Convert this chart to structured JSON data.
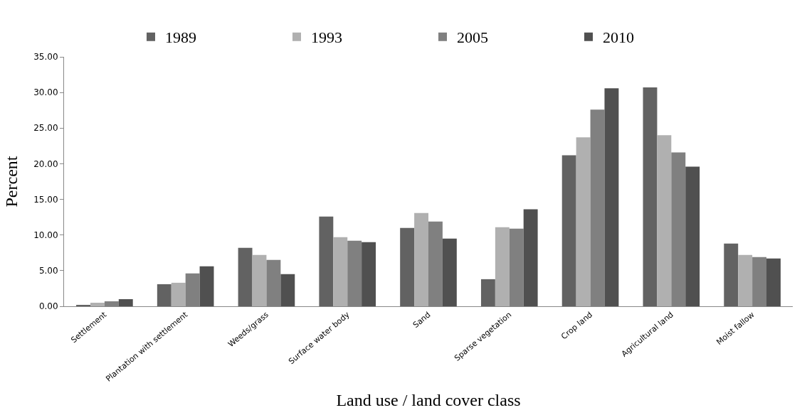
{
  "chart_data": {
    "type": "bar",
    "xlabel": "Land use / land cover class",
    "ylabel": "Percent",
    "categories": [
      "Settlement",
      "Plantation with settlement",
      "Weeds/grass",
      "Surface water body",
      "Sand",
      "Sparse vegetation",
      "Crop land",
      "Agricultural land",
      "Moist fallow"
    ],
    "series": [
      {
        "name": "1989",
        "color": "#626262",
        "values": [
          0.2,
          3.1,
          8.2,
          12.6,
          11.0,
          3.8,
          21.2,
          30.7,
          8.8
        ]
      },
      {
        "name": "1993",
        "color": "#b0b0b0",
        "values": [
          0.5,
          3.3,
          7.2,
          9.7,
          13.1,
          11.1,
          23.7,
          24.0,
          7.2
        ]
      },
      {
        "name": "2005",
        "color": "#808080",
        "values": [
          0.7,
          4.6,
          6.5,
          9.2,
          11.9,
          10.9,
          27.6,
          21.6,
          6.9
        ]
      },
      {
        "name": "2010",
        "color": "#505050",
        "values": [
          1.0,
          5.6,
          4.5,
          9.0,
          9.5,
          13.6,
          30.6,
          19.6,
          6.7
        ]
      }
    ],
    "ylim": [
      0,
      35
    ],
    "yticks": [
      {
        "value": 0,
        "label": "0.00"
      },
      {
        "value": 5,
        "label": "5.00"
      },
      {
        "value": 10,
        "label": "10.00"
      },
      {
        "value": 15,
        "label": "15.00"
      },
      {
        "value": 20,
        "label": "20.00"
      },
      {
        "value": 25,
        "label": "25.00"
      },
      {
        "value": 30,
        "label": "30.00"
      },
      {
        "value": 35,
        "label": "35.00"
      }
    ],
    "legend": "top"
  }
}
